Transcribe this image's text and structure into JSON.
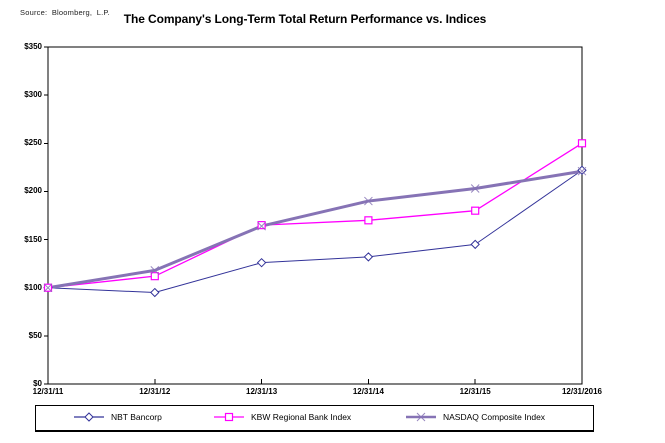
{
  "source_label": "Source:  Bloomberg,  L.P.",
  "title": "The Company's Long-Term Total Return Performance vs. Indices",
  "chart_data": {
    "type": "line",
    "title": "The Company's Long-Term Total Return Performance vs. Indices",
    "categories": [
      "12/31/11",
      "12/31/12",
      "12/31/13",
      "12/31/14",
      "12/31/15",
      "12/31/2016"
    ],
    "series": [
      {
        "name": "NBT Bancorp",
        "values": [
          100,
          95,
          126,
          132,
          145,
          222
        ],
        "color": "#333399",
        "marker": "diamond",
        "line_width": 1
      },
      {
        "name": "KBW Regional Bank Index",
        "values": [
          100,
          112,
          165,
          170,
          180,
          250
        ],
        "color": "#FF00FF",
        "marker": "square",
        "line_width": 1.3
      },
      {
        "name": "NASDAQ Composite Index",
        "values": [
          100,
          118,
          164,
          190,
          203,
          221
        ],
        "color": "#8673B5",
        "marker": "x",
        "line_width": 3
      }
    ],
    "xlabel": "",
    "ylabel": "",
    "ylim": [
      0,
      350
    ],
    "y_tick_step": 50,
    "y_tick_labels": [
      "$0",
      "$50",
      "$100",
      "$150",
      "$200",
      "$250",
      "$300",
      "$350"
    ],
    "grid": false,
    "legend_position": "bottom",
    "axis_color": "#000000",
    "background_color": "#FFFFFF"
  }
}
